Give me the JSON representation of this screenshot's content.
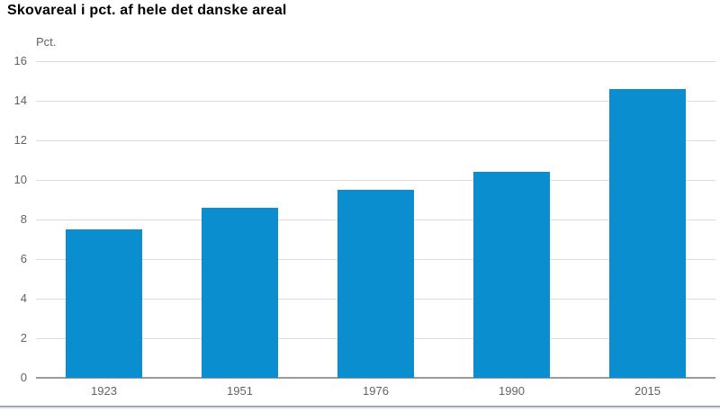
{
  "chart_data": {
    "type": "bar",
    "title": "Skovareal i pct. af hele det danske areal",
    "categories": [
      "1923",
      "1951",
      "1976",
      "1990",
      "2015"
    ],
    "values": [
      7.5,
      8.6,
      9.5,
      10.4,
      14.6
    ],
    "xlabel": "",
    "ylabel": "Pct.",
    "ylim": [
      0,
      16
    ],
    "ytick_step": 2,
    "grid": true,
    "legend": false,
    "bar_color": "#0b8ed0",
    "gridline_color": "#dcdcdc",
    "zero_axis_color": "#9a9a9a",
    "tick_label_color": "#636363",
    "title_color": "#000000"
  }
}
